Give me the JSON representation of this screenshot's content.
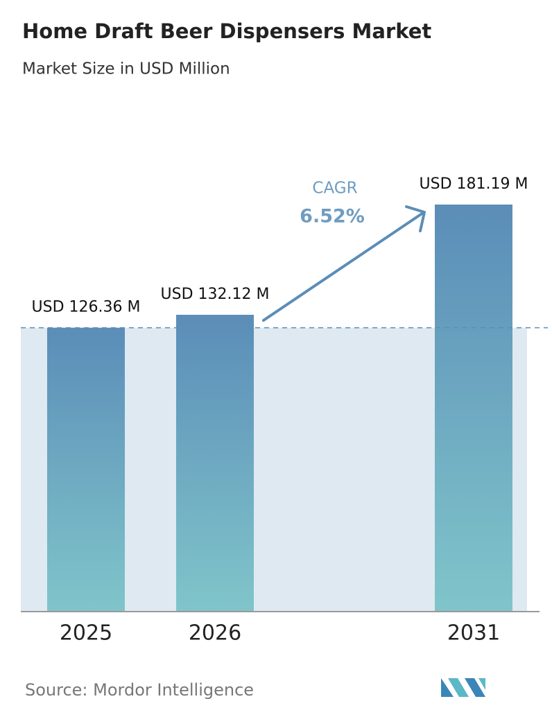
{
  "chart_data": {
    "type": "bar",
    "title": "Home Draft Beer Dispensers Market",
    "subtitle": "Market Size in USD Million",
    "categories": [
      "2025",
      "2026",
      "2031"
    ],
    "values": [
      126.36,
      132.12,
      181.19
    ],
    "value_labels": [
      "USD 126.36 M",
      "USD 132.12 M",
      "USD 181.19 M"
    ],
    "color": [
      "#5b8db8",
      "#80c5ca"
    ],
    "annotations": {
      "cagr_label": "CAGR",
      "cagr_value": "6.52%"
    },
    "source": "Source: Mordor Intelligence"
  }
}
